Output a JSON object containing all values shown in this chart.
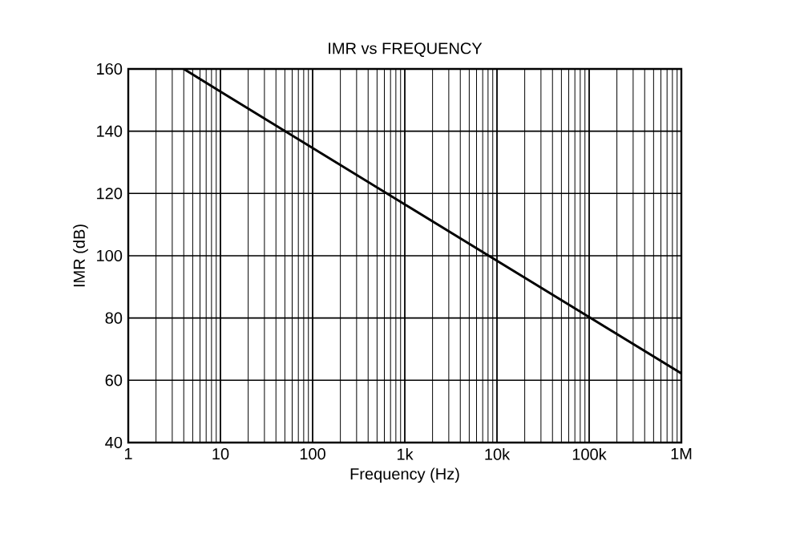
{
  "chart_data": {
    "type": "line",
    "title": "IMR vs FREQUENCY",
    "xlabel": "Frequency (Hz)",
    "ylabel": "IMR (dB)",
    "x": [
      4,
      10,
      100,
      1000,
      10000,
      100000,
      1000000
    ],
    "series": [
      {
        "color": "#000000",
        "values": [
          160,
          152.7,
          134.6,
          116.5,
          98.4,
          80.3,
          62.2
        ]
      }
    ],
    "xlim": [
      1,
      1000000
    ],
    "ylim": [
      40,
      160
    ],
    "xticks": [
      1,
      10,
      100,
      {
        "value": 1000,
        "label": "1k"
      },
      {
        "value": 10000,
        "label": "10k"
      },
      {
        "value": 100000,
        "label": "100k"
      },
      {
        "value": 1000000,
        "label": "1M"
      }
    ],
    "yticks": [
      40,
      60,
      80,
      100,
      120,
      140,
      160
    ],
    "log": "x",
    "grid": true,
    "marker": "none"
  }
}
